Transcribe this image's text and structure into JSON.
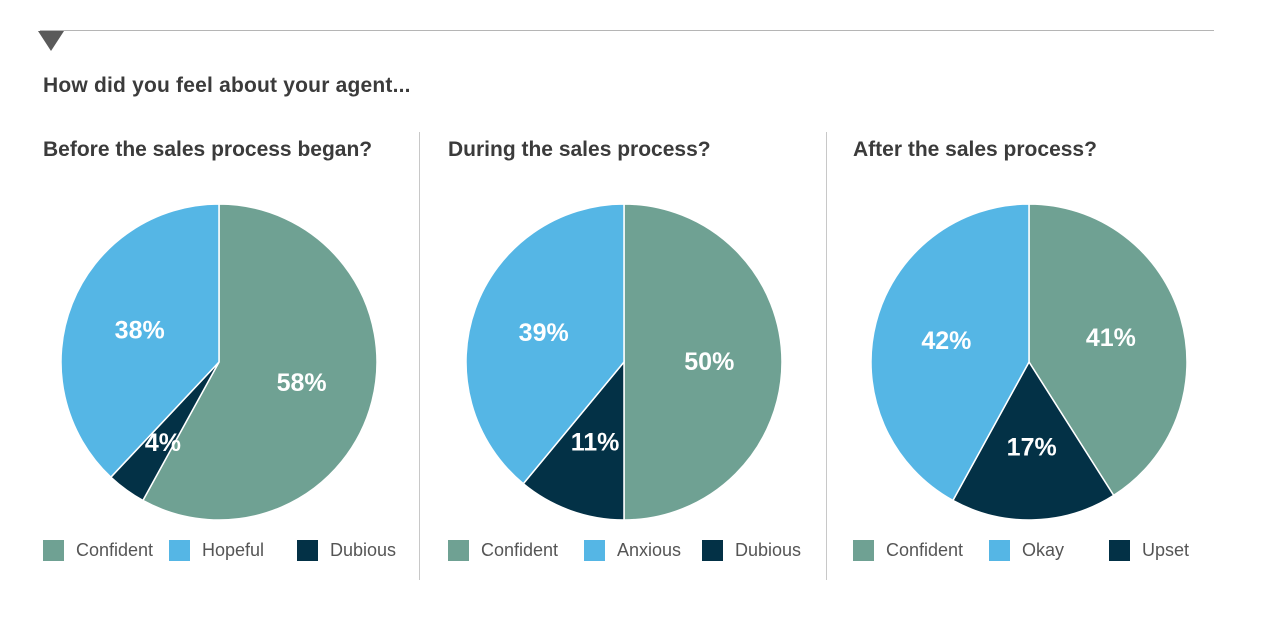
{
  "header": {
    "question": "How did you feel about your agent..."
  },
  "colors": {
    "confident": "#6fa193",
    "second": "#55b6e5",
    "third": "#033146",
    "label_text": "#ffffff"
  },
  "chart_data": [
    {
      "type": "pie",
      "title": "Before the sales process began?",
      "categories": [
        "Confident",
        "Hopeful",
        "Dubious"
      ],
      "values": [
        58,
        38,
        4
      ],
      "labels": [
        "58%",
        "38%",
        "4%"
      ],
      "colors": [
        "#6fa193",
        "#55b6e5",
        "#033146"
      ],
      "legend": [
        "Confident",
        "Hopeful",
        "Dubious"
      ]
    },
    {
      "type": "pie",
      "title": "During the sales process?",
      "categories": [
        "Confident",
        "Anxious",
        "Dubious"
      ],
      "values": [
        50,
        39,
        11
      ],
      "labels": [
        "50%",
        "39%",
        "11%"
      ],
      "colors": [
        "#6fa193",
        "#55b6e5",
        "#033146"
      ],
      "legend": [
        "Confident",
        "Anxious",
        "Dubious"
      ]
    },
    {
      "type": "pie",
      "title": "After the sales process?",
      "categories": [
        "Confident",
        "Okay",
        "Upset"
      ],
      "values": [
        41,
        42,
        17
      ],
      "labels": [
        "41%",
        "42%",
        "17%"
      ],
      "colors": [
        "#6fa193",
        "#55b6e5",
        "#033146"
      ],
      "legend": [
        "Confident",
        "Okay",
        "Upset"
      ]
    }
  ]
}
